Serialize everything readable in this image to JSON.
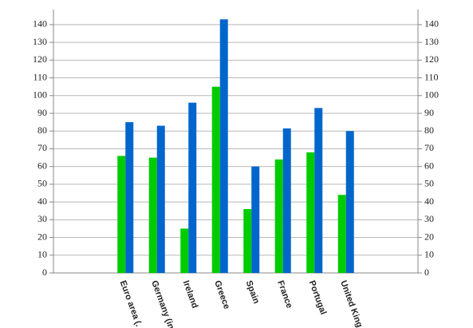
{
  "chart_data": {
    "type": "bar",
    "categories": [
      "Euro area (.",
      "Germany (in",
      "Ireland",
      "Greece",
      "Spain",
      "France",
      "Portugal",
      "United King"
    ],
    "series": [
      {
        "color": "#00cc00",
        "values": [
          66,
          65,
          25,
          105,
          36,
          64,
          68,
          44
        ]
      },
      {
        "color": "#0066cc",
        "values": [
          85,
          83,
          96,
          143,
          60,
          81.5,
          93,
          80
        ]
      }
    ],
    "ylim": [
      0,
      148.5
    ],
    "yticks": [
      0,
      10,
      20,
      30,
      40,
      50,
      60,
      70,
      80,
      90,
      100,
      110,
      120,
      130,
      140
    ],
    "y2lim": [
      0,
      148.5
    ],
    "y2ticks": [
      0,
      10,
      20,
      30,
      40,
      50,
      60,
      70,
      80,
      90,
      100,
      110,
      120,
      130,
      140
    ],
    "grid": true
  }
}
